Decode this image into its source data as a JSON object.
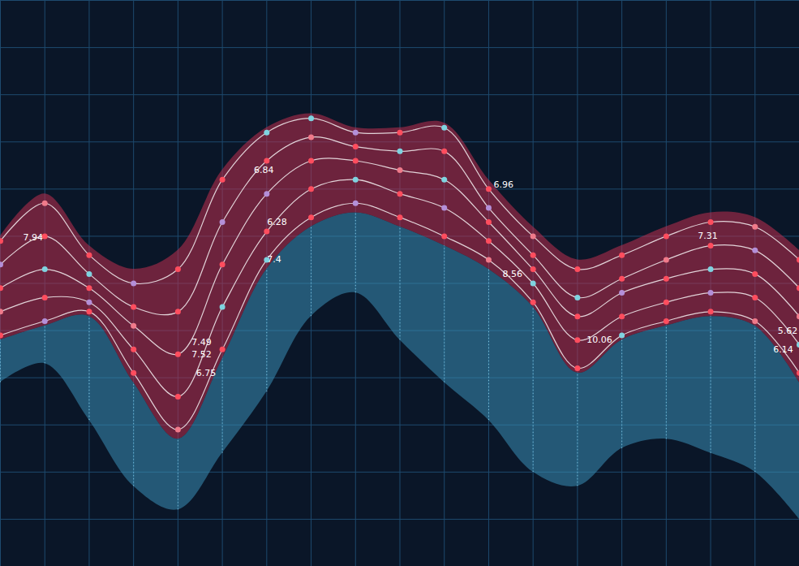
{
  "chart_data": {
    "type": "line",
    "x": [
      0,
      1,
      2,
      3,
      4,
      5,
      6,
      7,
      8,
      9,
      10,
      11,
      12,
      13,
      14,
      15,
      16,
      17,
      18
    ],
    "xlim": [
      0,
      18
    ],
    "xticks": [
      0,
      1,
      2,
      3,
      4,
      5,
      6,
      7,
      8,
      9,
      10,
      11,
      12,
      13,
      14,
      15,
      16,
      17,
      18
    ],
    "ylim": [
      0,
      12
    ],
    "yticks": [
      0,
      1,
      2,
      3,
      4,
      5,
      6,
      7,
      8,
      9,
      10,
      11,
      12
    ],
    "grid": true,
    "tick_labels": false,
    "series": [
      {
        "type": "area",
        "color": "#3a8fb7",
        "line_style": "dotted",
        "lower": [
          3.9,
          4.3,
          3.1,
          1.7,
          1.2,
          2.4,
          3.7,
          5.3,
          5.8,
          4.8,
          3.9,
          3.1,
          2.0,
          1.7,
          2.5,
          2.7,
          2.4,
          2.0,
          1.0
        ],
        "upper": [
          4.8,
          5.1,
          5.3,
          3.9,
          2.7,
          4.4,
          6.3,
          7.2,
          7.5,
          7.2,
          6.8,
          6.3,
          5.5,
          4.1,
          4.8,
          5.1,
          5.3,
          5.1,
          3.9
        ]
      },
      {
        "type": "area",
        "color": "#c0304f",
        "lower": [
          4.8,
          5.1,
          5.3,
          3.9,
          2.7,
          4.4,
          6.3,
          7.2,
          7.5,
          7.2,
          6.8,
          6.3,
          5.5,
          4.1,
          4.8,
          5.1,
          5.3,
          5.1,
          3.9
        ],
        "upper": [
          7.0,
          7.9,
          6.8,
          6.3,
          6.7,
          8.4,
          9.3,
          9.6,
          9.3,
          9.3,
          9.4,
          8.2,
          7.2,
          6.5,
          6.8,
          7.2,
          7.5,
          7.4,
          6.7
        ]
      },
      {
        "type": "line",
        "color": "#ffffff",
        "marker": "circle",
        "values": [
          6.9,
          7.7,
          6.6,
          6.0,
          6.3,
          8.2,
          9.2,
          9.5,
          9.2,
          9.2,
          9.3,
          8.0,
          7.0,
          6.3,
          6.6,
          7.0,
          7.3,
          7.2,
          6.5
        ],
        "colors": [
          "#ff4d5e",
          "#f07a8a",
          "#ff4d5e",
          "#b48fd8",
          "#ff4d5e",
          "#ff4d5e",
          "#7fd3e0",
          "#7fd3e0",
          "#b48fd8",
          "#ff4d5e",
          "#7fd3e0",
          "#ff4d5e",
          "#f07a8a",
          "#ff4d5e",
          "#ff4d5e",
          "#ff4d5e",
          "#ff4d5e",
          "#f07a8a",
          "#ff4d5e"
        ]
      },
      {
        "type": "line",
        "color": "#ffffff",
        "marker": "circle",
        "values": [
          6.4,
          7.0,
          6.2,
          5.5,
          5.4,
          7.3,
          8.6,
          9.1,
          8.9,
          8.8,
          8.8,
          7.6,
          6.6,
          5.7,
          6.1,
          6.5,
          6.8,
          6.7,
          5.9
        ],
        "colors": [
          "#b48fd8",
          "#ff4d5e",
          "#7fd3e0",
          "#ff4d5e",
          "#ff4d5e",
          "#b48fd8",
          "#ff4d5e",
          "#f07a8a",
          "#ff4d5e",
          "#7fd3e0",
          "#ff4d5e",
          "#b48fd8",
          "#ff4d5e",
          "#7fd3e0",
          "#ff4d5e",
          "#f07a8a",
          "#ff4d5e",
          "#b48fd8",
          "#ff4d5e"
        ]
      },
      {
        "type": "line",
        "color": "#ffffff",
        "marker": "circle",
        "values": [
          5.9,
          6.3,
          5.9,
          5.1,
          4.5,
          6.4,
          7.9,
          8.6,
          8.6,
          8.4,
          8.2,
          7.3,
          6.3,
          5.3,
          5.8,
          6.1,
          6.3,
          6.2,
          5.3
        ],
        "colors": [
          "#ff4d5e",
          "#7fd3e0",
          "#ff4d5e",
          "#f07a8a",
          "#ff4d5e",
          "#ff4d5e",
          "#b48fd8",
          "#ff4d5e",
          "#ff4d5e",
          "#f07a8a",
          "#7fd3e0",
          "#ff4d5e",
          "#ff4d5e",
          "#ff4d5e",
          "#b48fd8",
          "#ff4d5e",
          "#7fd3e0",
          "#ff4d5e",
          "#f07a8a"
        ]
      },
      {
        "type": "line",
        "color": "#ffffff",
        "marker": "circle",
        "values": [
          5.4,
          5.7,
          5.6,
          4.6,
          3.6,
          5.5,
          7.1,
          8.0,
          8.2,
          7.9,
          7.6,
          6.9,
          6.0,
          4.8,
          5.3,
          5.6,
          5.8,
          5.7,
          4.7
        ],
        "colors": [
          "#f07a8a",
          "#ff4d5e",
          "#b48fd8",
          "#ff4d5e",
          "#ff4d5e",
          "#7fd3e0",
          "#ff4d5e",
          "#ff4d5e",
          "#7fd3e0",
          "#ff4d5e",
          "#b48fd8",
          "#ff4d5e",
          "#7fd3e0",
          "#ff4d5e",
          "#ff4d5e",
          "#ff4d5e",
          "#b48fd8",
          "#ff4d5e",
          "#7fd3e0"
        ]
      },
      {
        "type": "line",
        "color": "#ffffff",
        "marker": "circle",
        "values": [
          4.9,
          5.2,
          5.4,
          4.1,
          2.9,
          4.6,
          6.5,
          7.4,
          7.7,
          7.4,
          7.0,
          6.5,
          5.6,
          4.2,
          4.9,
          5.2,
          5.4,
          5.2,
          4.1
        ],
        "colors": [
          "#ff4d5e",
          "#b48fd8",
          "#ff4d5e",
          "#ff4d5e",
          "#f07a8a",
          "#ff4d5e",
          "#7fd3e0",
          "#ff4d5e",
          "#b48fd8",
          "#ff4d5e",
          "#ff4d5e",
          "#f07a8a",
          "#ff4d5e",
          "#ff4d5e",
          "#7fd3e0",
          "#ff4d5e",
          "#ff4d5e",
          "#f07a8a",
          "#ff4d5e"
        ]
      }
    ],
    "annotations": [
      {
        "x": 0.4,
        "y": 6.97,
        "value": 7.94
      },
      {
        "x": 5.6,
        "y": 8.4,
        "value": 6.84
      },
      {
        "x": 5.9,
        "y": 7.3,
        "value": 6.28
      },
      {
        "x": 5.9,
        "y": 6.5,
        "value": 7.4
      },
      {
        "x": 4.2,
        "y": 4.75,
        "value": 7.49
      },
      {
        "x": 4.2,
        "y": 4.5,
        "value": 7.52
      },
      {
        "x": 4.3,
        "y": 4.1,
        "value": 6.75
      },
      {
        "x": 11.0,
        "y": 8.1,
        "value": 6.96
      },
      {
        "x": 11.2,
        "y": 6.2,
        "value": 8.56
      },
      {
        "x": 13.1,
        "y": 4.8,
        "value": 10.06
      },
      {
        "x": 15.6,
        "y": 7.0,
        "value": 7.31
      },
      {
        "x": 17.4,
        "y": 5.0,
        "value": 5.62
      },
      {
        "x": 17.3,
        "y": 4.6,
        "value": 6.14
      }
    ]
  }
}
